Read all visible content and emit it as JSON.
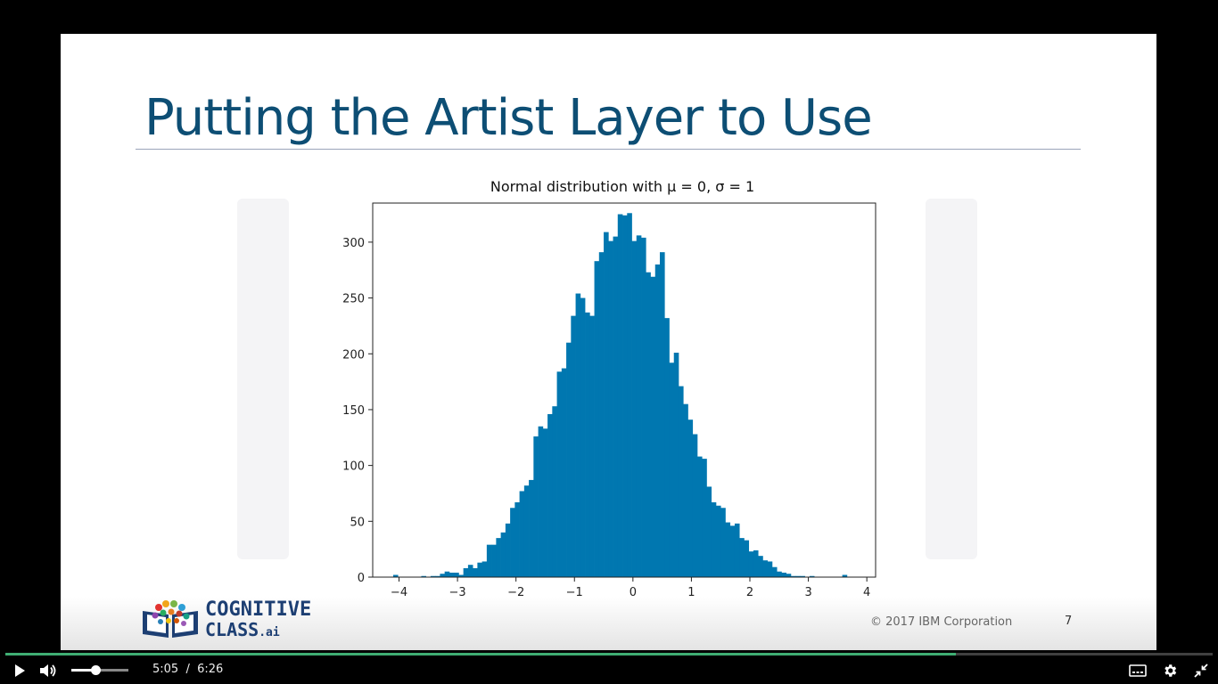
{
  "slide": {
    "title": "Putting the Artist Layer to Use",
    "copyright": "© 2017 IBM Corporation",
    "page_number": "7",
    "logo": {
      "line1": "COGNITIVE",
      "line2": "CLASS",
      "line2_suffix": ".ai"
    }
  },
  "chart_data": {
    "type": "bar",
    "title": "Normal distribution with μ = 0, σ = 1",
    "xlabel": "",
    "ylabel": "",
    "xlim": [
      -4.45,
      4.15
    ],
    "ylim": [
      0,
      335
    ],
    "x_ticks": [
      -4,
      -3,
      -2,
      -1,
      0,
      1,
      2,
      3,
      4
    ],
    "x_tick_labels": [
      "−4",
      "−3",
      "−2",
      "−1",
      "0",
      "1",
      "2",
      "3",
      "4"
    ],
    "y_ticks": [
      0,
      50,
      100,
      150,
      200,
      250,
      300
    ],
    "y_tick_labels": [
      "0",
      "50",
      "100",
      "150",
      "200",
      "250",
      "300"
    ],
    "bin_start": -4.1,
    "bin_width": 0.08,
    "color": "#0077b0",
    "values": [
      2,
      0,
      0,
      0,
      0,
      0,
      1,
      0,
      1,
      1,
      3,
      5,
      4,
      4,
      2,
      8,
      11,
      8,
      13,
      14,
      29,
      29,
      35,
      40,
      48,
      62,
      67,
      77,
      82,
      87,
      126,
      135,
      133,
      146,
      153,
      184,
      187,
      210,
      234,
      254,
      250,
      237,
      234,
      283,
      291,
      309,
      301,
      305,
      325,
      324,
      326,
      301,
      306,
      304,
      273,
      269,
      280,
      291,
      232,
      192,
      201,
      171,
      155,
      141,
      128,
      108,
      106,
      81,
      67,
      64,
      62,
      49,
      46,
      48,
      35,
      33,
      23,
      24,
      19,
      15,
      14,
      9,
      5,
      4,
      3,
      1,
      1,
      1,
      0,
      1,
      0,
      0,
      0,
      0,
      0,
      0,
      2
    ]
  },
  "player": {
    "current_time": "5:05",
    "separator": "/",
    "duration": "6:26",
    "progress_fraction": 0.787,
    "volume_fraction": 0.42,
    "accent_color": "#3fae73"
  }
}
